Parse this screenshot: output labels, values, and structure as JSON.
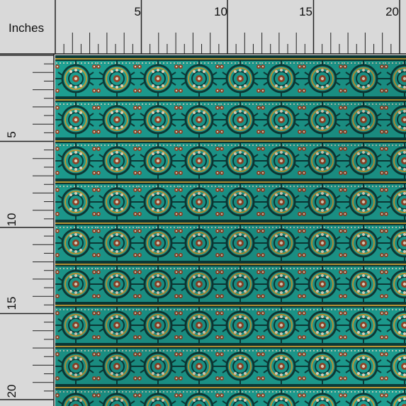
{
  "ruler": {
    "unit_label": "Inches",
    "top_labels": [
      "5",
      "10",
      "15",
      "20"
    ],
    "left_labels": [
      "5",
      "10",
      "15",
      "20"
    ]
  },
  "fabric": {
    "pattern": "ethnic-medallion-stripe",
    "colors": {
      "base": "#1fa89a",
      "dark": "#0d3f3c",
      "teal_light": "#38c2b2",
      "gold": "#c9a33a",
      "rust": "#9c4a2c",
      "cream": "#efe7cf"
    }
  }
}
